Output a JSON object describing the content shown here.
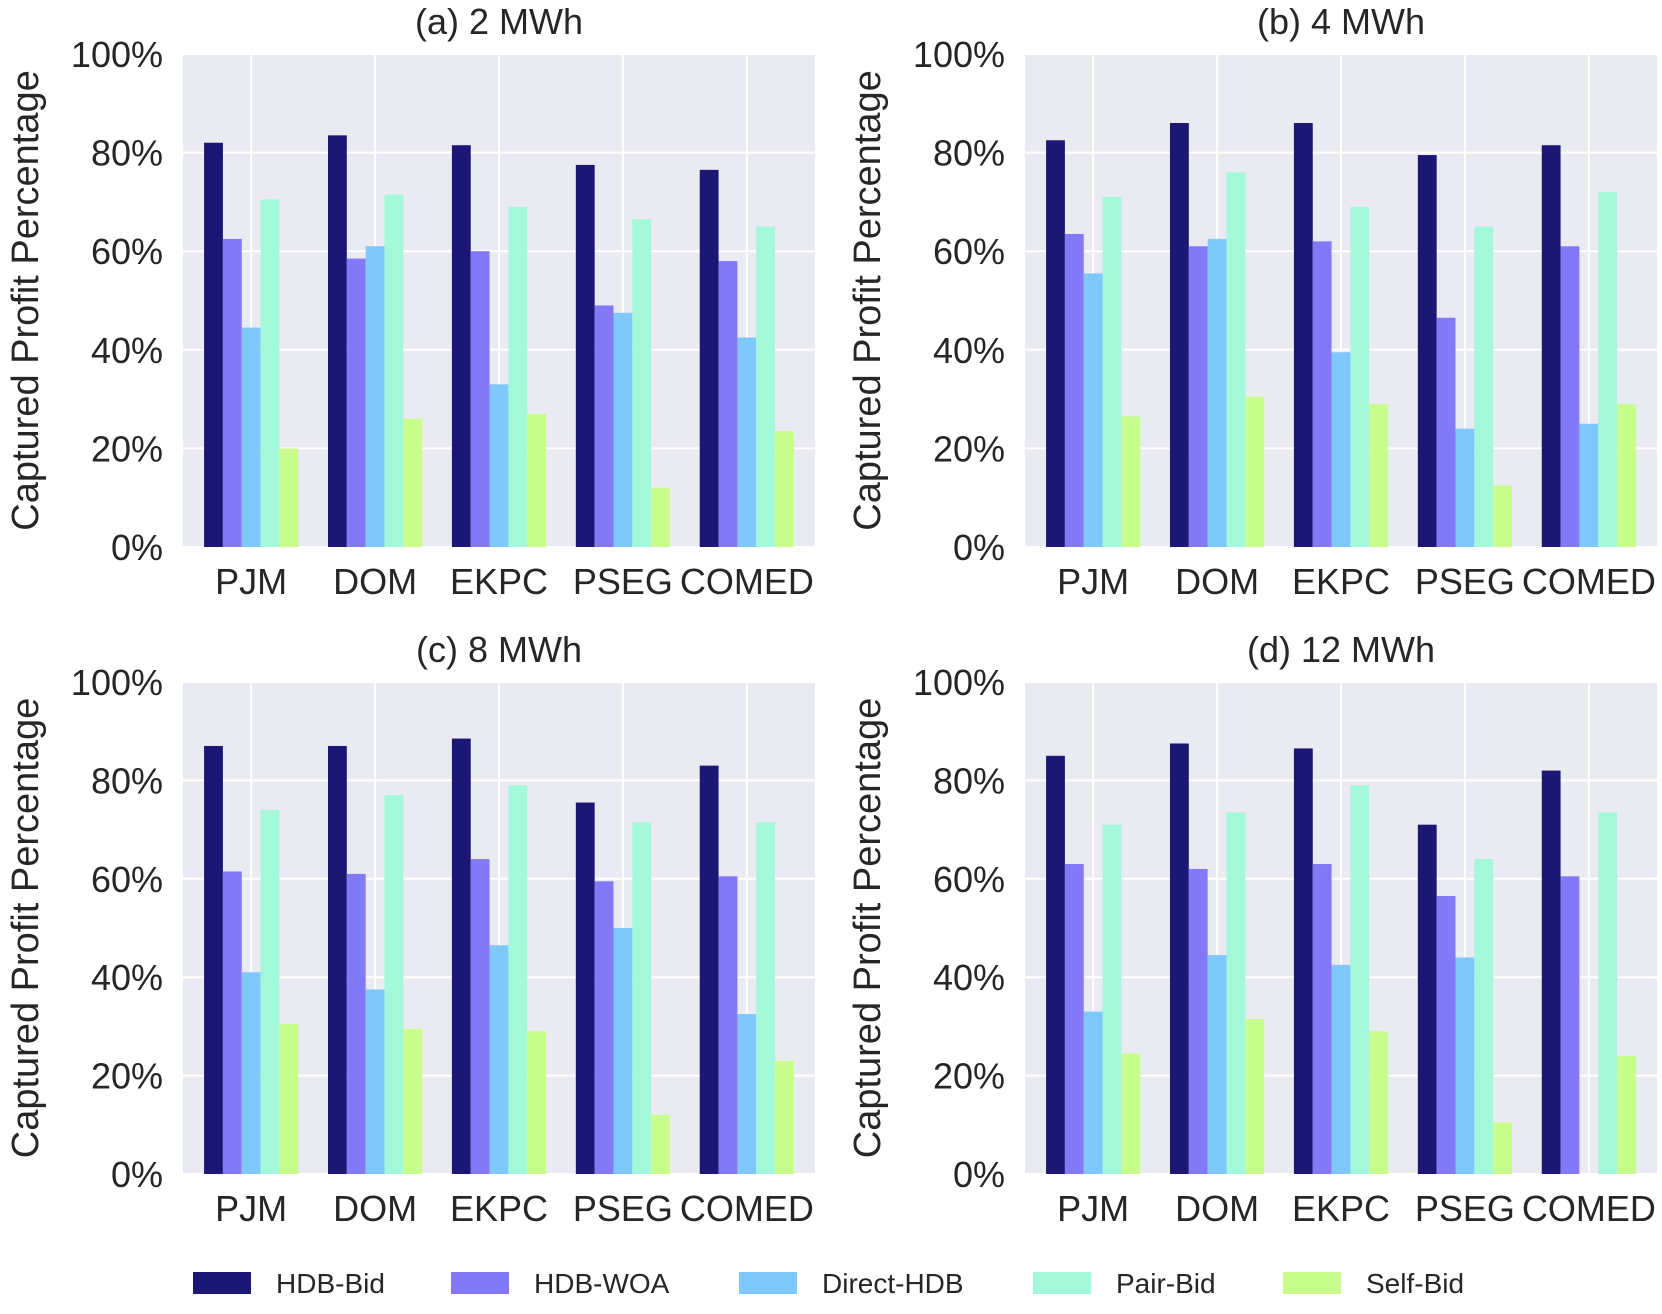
{
  "chart_data": [
    {
      "type": "bar",
      "title": "(a) 2 MWh",
      "xlabel": "",
      "ylabel": "Captured Profit Percentage",
      "ylim": [
        0,
        100
      ],
      "yticks": [
        "0%",
        "20%",
        "40%",
        "60%",
        "80%",
        "100%"
      ],
      "categories": [
        "PJM",
        "DOM",
        "EKPC",
        "PSEG",
        "COMED"
      ],
      "series": [
        {
          "name": "HDB-Bid",
          "values": [
            82,
            83.5,
            81.5,
            77.5,
            76.5
          ]
        },
        {
          "name": "HDB-WOA",
          "values": [
            62.5,
            58.5,
            60,
            49,
            58
          ]
        },
        {
          "name": "Direct-HDB",
          "values": [
            44.5,
            61,
            33,
            47.5,
            42.5
          ]
        },
        {
          "name": "Pair-Bid",
          "values": [
            70.5,
            71.5,
            69,
            66.5,
            65
          ]
        },
        {
          "name": "Self-Bid",
          "values": [
            20,
            26,
            27,
            12,
            23.5
          ]
        }
      ]
    },
    {
      "type": "bar",
      "title": "(b) 4 MWh",
      "xlabel": "",
      "ylabel": "Captured Profit Percentage",
      "ylim": [
        0,
        100
      ],
      "yticks": [
        "0%",
        "20%",
        "40%",
        "60%",
        "80%",
        "100%"
      ],
      "categories": [
        "PJM",
        "DOM",
        "EKPC",
        "PSEG",
        "COMED"
      ],
      "series": [
        {
          "name": "HDB-Bid",
          "values": [
            82.5,
            86,
            86,
            79.5,
            81.5
          ]
        },
        {
          "name": "HDB-WOA",
          "values": [
            63.5,
            61,
            62,
            46.5,
            61
          ]
        },
        {
          "name": "Direct-HDB",
          "values": [
            55.5,
            62.5,
            39.5,
            24,
            25
          ]
        },
        {
          "name": "Pair-Bid",
          "values": [
            71,
            76,
            69,
            65,
            72
          ]
        },
        {
          "name": "Self-Bid",
          "values": [
            26.5,
            30.5,
            29,
            12.5,
            29
          ]
        }
      ]
    },
    {
      "type": "bar",
      "title": "(c) 8 MWh",
      "xlabel": "",
      "ylabel": "Captured Profit Percentage",
      "ylim": [
        0,
        100
      ],
      "yticks": [
        "0%",
        "20%",
        "40%",
        "60%",
        "80%",
        "100%"
      ],
      "categories": [
        "PJM",
        "DOM",
        "EKPC",
        "PSEG",
        "COMED"
      ],
      "series": [
        {
          "name": "HDB-Bid",
          "values": [
            87,
            87,
            88.5,
            75.5,
            83
          ]
        },
        {
          "name": "HDB-WOA",
          "values": [
            61.5,
            61,
            64,
            59.5,
            60.5
          ]
        },
        {
          "name": "Direct-HDB",
          "values": [
            41,
            37.5,
            46.5,
            50,
            32.5
          ]
        },
        {
          "name": "Pair-Bid",
          "values": [
            74,
            77,
            79,
            71.5,
            71.5
          ]
        },
        {
          "name": "Self-Bid",
          "values": [
            30.5,
            29.5,
            29,
            12,
            23
          ]
        }
      ]
    },
    {
      "type": "bar",
      "title": "(d) 12 MWh",
      "xlabel": "",
      "ylabel": "Captured Profit Percentage",
      "ylim": [
        0,
        100
      ],
      "yticks": [
        "0%",
        "20%",
        "40%",
        "60%",
        "80%",
        "100%"
      ],
      "categories": [
        "PJM",
        "DOM",
        "EKPC",
        "PSEG",
        "COMED"
      ],
      "series": [
        {
          "name": "HDB-Bid",
          "values": [
            85,
            87.5,
            86.5,
            71,
            82
          ]
        },
        {
          "name": "HDB-WOA",
          "values": [
            63,
            62,
            63,
            56.5,
            60.5
          ]
        },
        {
          "name": "Direct-HDB",
          "values": [
            33,
            44.5,
            42.5,
            44,
            0
          ]
        },
        {
          "name": "Pair-Bid",
          "values": [
            71,
            73.5,
            79,
            64,
            73.5
          ]
        },
        {
          "name": "Self-Bid",
          "values": [
            24.5,
            31.5,
            29,
            10.5,
            24
          ]
        }
      ]
    }
  ],
  "legend": {
    "placement": "bottom",
    "items": [
      {
        "label": "HDB-Bid",
        "color": "#1c1774"
      },
      {
        "label": "HDB-WOA",
        "color": "#8379f7"
      },
      {
        "label": "Direct-HDB",
        "color": "#7ec8fb"
      },
      {
        "label": "Pair-Bid",
        "color": "#a2f8d8"
      },
      {
        "label": "Self-Bid",
        "color": "#c8fd8d"
      }
    ]
  },
  "style": {
    "plot_background": "#eaeaf2",
    "grid_color": "#ffffff"
  }
}
